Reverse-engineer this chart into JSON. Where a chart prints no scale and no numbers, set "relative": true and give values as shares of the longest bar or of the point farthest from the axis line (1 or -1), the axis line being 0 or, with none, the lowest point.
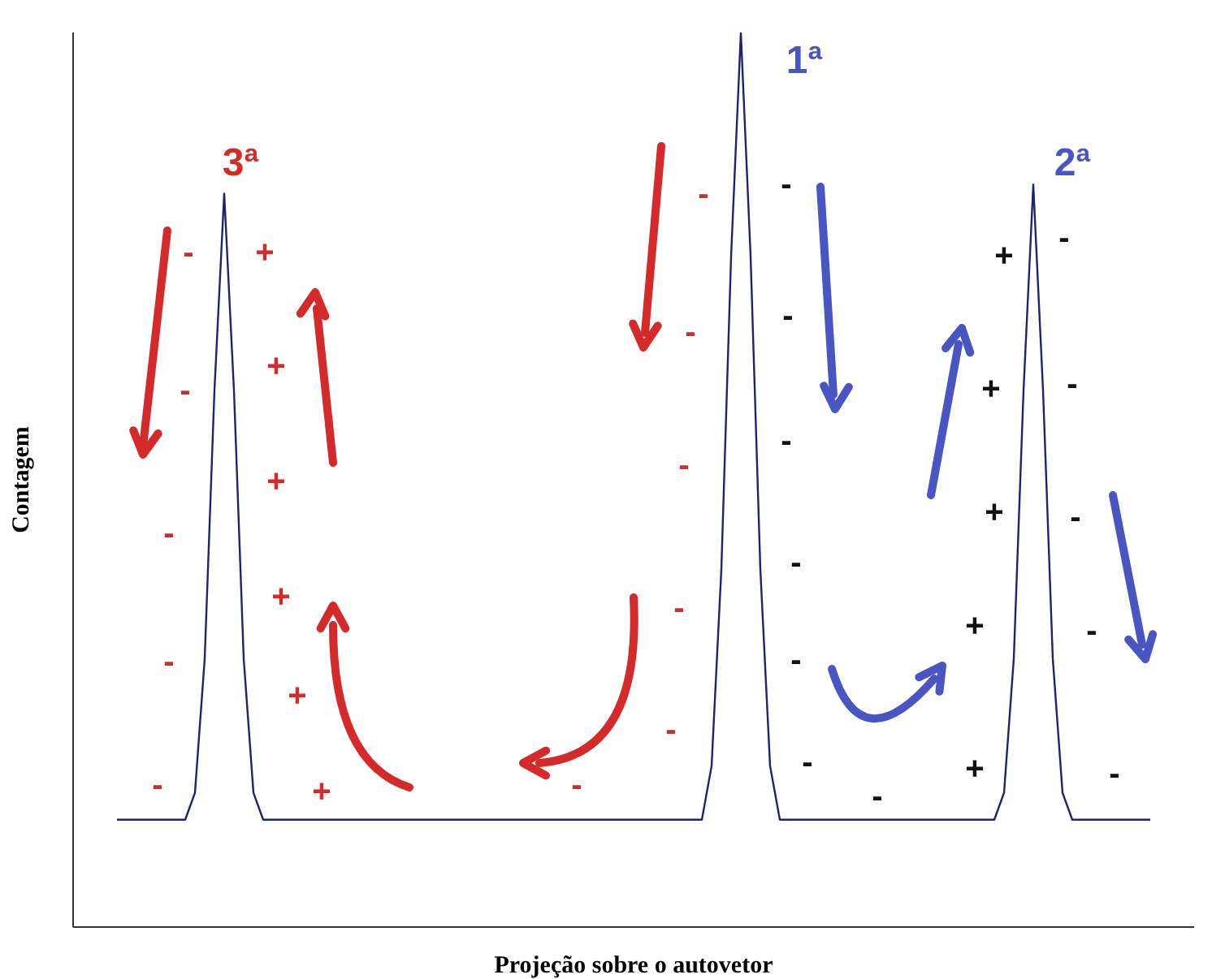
{
  "chart_data": {
    "type": "line",
    "xlabel": "Projeção sobre o autovetor",
    "ylabel": "Contagem",
    "relative": true,
    "categories": [
      null,
      null,
      null,
      null,
      null,
      null,
      null,
      null,
      null,
      null,
      null,
      null,
      null,
      null,
      null,
      null,
      null,
      null,
      null,
      null,
      null,
      null,
      null,
      null,
      null,
      null,
      null,
      null,
      null,
      null,
      null,
      null,
      null,
      null,
      null,
      null,
      null,
      null,
      null,
      null,
      null,
      null,
      null,
      null,
      null,
      null,
      null,
      null,
      null,
      null,
      null,
      null,
      null,
      null,
      null,
      null,
      null,
      null,
      null,
      null,
      null,
      null,
      null,
      null,
      null,
      null,
      null,
      null,
      null,
      null,
      null,
      null,
      null,
      null,
      null,
      null,
      null,
      null,
      null,
      null,
      null,
      null,
      null,
      null,
      null,
      null,
      null,
      null,
      null,
      null,
      null,
      null,
      null,
      null,
      null,
      null,
      null,
      null,
      null,
      null,
      null,
      null,
      null,
      null,
      null,
      null,
      null
    ],
    "series": [
      {
        "color": "#22226e",
        "values": [
          0.12,
          0.12,
          0.12,
          0.12,
          0.12,
          0.12,
          0.12,
          0.12,
          0.15,
          0.3,
          0.6,
          0.82,
          0.6,
          0.3,
          0.15,
          0.12,
          0.12,
          0.12,
          0.12,
          0.12,
          0.12,
          0.12,
          0.12,
          0.12,
          0.12,
          0.12,
          0.12,
          0.12,
          0.12,
          0.12,
          0.12,
          0.12,
          0.12,
          0.12,
          0.12,
          0.12,
          0.12,
          0.12,
          0.12,
          0.12,
          0.12,
          0.12,
          0.12,
          0.12,
          0.12,
          0.12,
          0.12,
          0.12,
          0.12,
          0.12,
          0.12,
          0.12,
          0.12,
          0.12,
          0.12,
          0.12,
          0.12,
          0.12,
          0.12,
          0.12,
          0.12,
          0.18,
          0.4,
          0.75,
          1,
          0.75,
          0.4,
          0.18,
          0.12,
          0.12,
          0.12,
          0.12,
          0.12,
          0.12,
          0.12,
          0.12,
          0.12,
          0.12,
          0.12,
          0.12,
          0.12,
          0.12,
          0.12,
          0.12,
          0.12,
          0.12,
          0.12,
          0.12,
          0.12,
          0.12,
          0.12,
          0.15,
          0.3,
          0.6,
          0.83,
          0.6,
          0.3,
          0.15,
          0.12,
          0.12,
          0.12,
          0.12,
          0.12,
          0.12,
          0.12,
          0.12,
          0.12
        ]
      }
    ],
    "annotations": [
      "3ª",
      "1ª",
      "2ª",
      "-",
      "-",
      "-",
      "-",
      "-",
      "+",
      "+",
      "+",
      "+",
      "+",
      "+",
      "-",
      "-",
      "-",
      "-",
      "-",
      "-",
      "-",
      "-",
      "-",
      "-",
      "-",
      "-",
      "-",
      "+",
      "+",
      "+",
      "+",
      "+",
      "-",
      "-",
      "-",
      "-",
      "-"
    ]
  }
}
